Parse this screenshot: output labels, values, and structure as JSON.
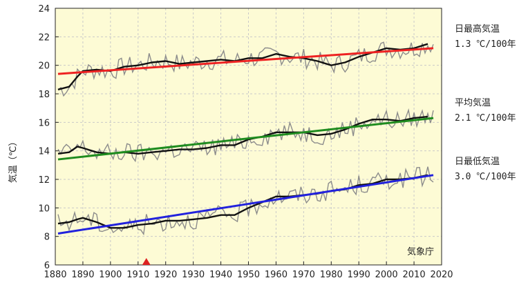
{
  "chart_data": {
    "type": "line",
    "title": "",
    "xlabel": "",
    "ylabel": "気温（℃）",
    "xlim": [
      1880,
      2020
    ],
    "ylim": [
      6,
      24
    ],
    "xticks": [
      1880,
      1890,
      1900,
      1910,
      1920,
      1930,
      1940,
      1950,
      1960,
      1970,
      1980,
      1990,
      2000,
      2010,
      2020
    ],
    "yticks": [
      6,
      8,
      10,
      12,
      14,
      16,
      18,
      20,
      22,
      24
    ],
    "grid": true,
    "legend_placement": "right",
    "source_label": "気象庁",
    "marker_year": 1913,
    "colors": {
      "background": "#fdfbd5",
      "grid": "#c9c9c9",
      "annual": "#8c8c8c",
      "smoothed": "#111111",
      "max_trend": "#ee2222",
      "mean_trend": "#1f8c1f",
      "min_trend": "#2222dd",
      "marker": "#dd2222"
    },
    "series": [
      {
        "name": "日最高気温",
        "rate": "1.3 ℃/100年",
        "trend_color": "#ee2222",
        "trend": {
          "x": [
            1881,
            2017
          ],
          "y": [
            19.4,
            21.2
          ]
        },
        "smoothed": {
          "x": [
            1881,
            1885,
            1888,
            1890,
            1895,
            1900,
            1905,
            1910,
            1915,
            1920,
            1925,
            1930,
            1935,
            1940,
            1945,
            1950,
            1955,
            1960,
            1965,
            1970,
            1975,
            1980,
            1985,
            1990,
            1995,
            2000,
            2005,
            2010,
            2015
          ],
          "y": [
            18.3,
            18.5,
            19.2,
            19.6,
            19.7,
            19.6,
            19.9,
            20.0,
            20.2,
            20.3,
            20.1,
            20.2,
            20.3,
            20.4,
            20.3,
            20.5,
            20.5,
            20.8,
            20.6,
            20.5,
            20.3,
            20.0,
            20.2,
            20.6,
            20.9,
            21.2,
            21.1,
            21.2,
            21.5
          ]
        }
      },
      {
        "name": "平均気温",
        "rate": "2.1 ℃/100年",
        "trend_color": "#1f8c1f",
        "trend": {
          "x": [
            1881,
            2017
          ],
          "y": [
            13.4,
            16.3
          ]
        },
        "smoothed": {
          "x": [
            1881,
            1885,
            1888,
            1890,
            1895,
            1900,
            1905,
            1910,
            1915,
            1920,
            1925,
            1930,
            1935,
            1940,
            1945,
            1950,
            1955,
            1960,
            1965,
            1970,
            1975,
            1980,
            1985,
            1990,
            1995,
            2000,
            2005,
            2010,
            2015
          ],
          "y": [
            13.8,
            13.9,
            14.3,
            14.2,
            13.9,
            13.8,
            13.9,
            13.8,
            13.9,
            14.0,
            14.1,
            14.1,
            14.2,
            14.4,
            14.4,
            14.8,
            15.0,
            15.3,
            15.3,
            15.3,
            15.1,
            15.2,
            15.5,
            15.9,
            16.2,
            16.2,
            16.1,
            16.3,
            16.4
          ]
        }
      },
      {
        "name": "日最低気温",
        "rate": "3.0 ℃/100年",
        "trend_color": "#2222dd",
        "trend": {
          "x": [
            1881,
            2017
          ],
          "y": [
            8.2,
            12.3
          ]
        },
        "smoothed": {
          "x": [
            1881,
            1885,
            1888,
            1890,
            1895,
            1900,
            1905,
            1910,
            1915,
            1920,
            1925,
            1930,
            1935,
            1940,
            1945,
            1950,
            1955,
            1960,
            1965,
            1970,
            1975,
            1980,
            1985,
            1990,
            1995,
            2000,
            2005,
            2010,
            2015
          ],
          "y": [
            8.9,
            9.0,
            9.2,
            9.3,
            9.0,
            8.6,
            8.6,
            8.8,
            8.9,
            9.1,
            9.1,
            9.2,
            9.3,
            9.5,
            9.5,
            10.0,
            10.4,
            10.8,
            10.8,
            10.9,
            11.0,
            11.2,
            11.3,
            11.6,
            11.7,
            12.0,
            12.0,
            12.1,
            12.3
          ]
        }
      }
    ]
  }
}
